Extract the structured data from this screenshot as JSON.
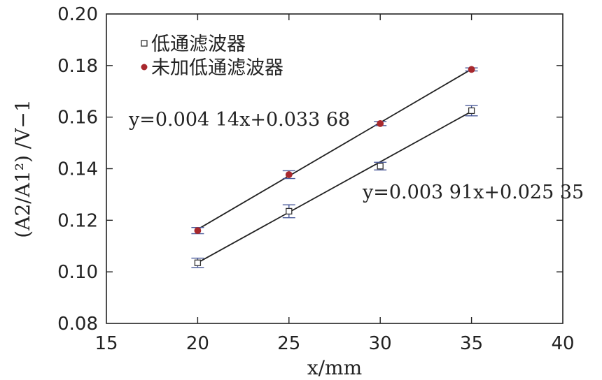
{
  "chart_data": {
    "type": "scatter",
    "xlabel": "x/mm",
    "ylabel": "(A2/A1²) /V−1",
    "xlim": [
      15,
      40
    ],
    "ylim": [
      0.08,
      0.2
    ],
    "xticks": [
      "15",
      "20",
      "25",
      "30",
      "35",
      "40"
    ],
    "yticks": [
      "0.08",
      "0.10",
      "0.12",
      "0.14",
      "0.16",
      "0.18",
      "0.20"
    ],
    "grid": false,
    "legend_position": "top-left",
    "series": [
      {
        "name": "低通滤波器",
        "marker": "open-square",
        "color": "#333333",
        "errorbar_color": "#4a5a9a",
        "x": [
          20,
          25,
          30,
          35
        ],
        "y": [
          0.1035,
          0.1235,
          0.141,
          0.1625
        ],
        "yerr": [
          0.0018,
          0.0025,
          0.0015,
          0.002
        ],
        "fit": {
          "slope": 0.00391,
          "intercept": 0.02535,
          "label": "y=0.003 91x+0.025 35"
        }
      },
      {
        "name": "未加低通滤波器",
        "marker": "filled-circle",
        "color": "#a8282d",
        "errorbar_color": "#4a5a9a",
        "x": [
          20,
          25,
          30,
          35
        ],
        "y": [
          0.116,
          0.1377,
          0.1575,
          0.1785
        ],
        "yerr": [
          0.0012,
          0.0015,
          0.0008,
          0.0006
        ],
        "fit": {
          "slope": 0.00414,
          "intercept": 0.03368,
          "label": "y=0.004 14x+0.033 68"
        }
      }
    ]
  }
}
